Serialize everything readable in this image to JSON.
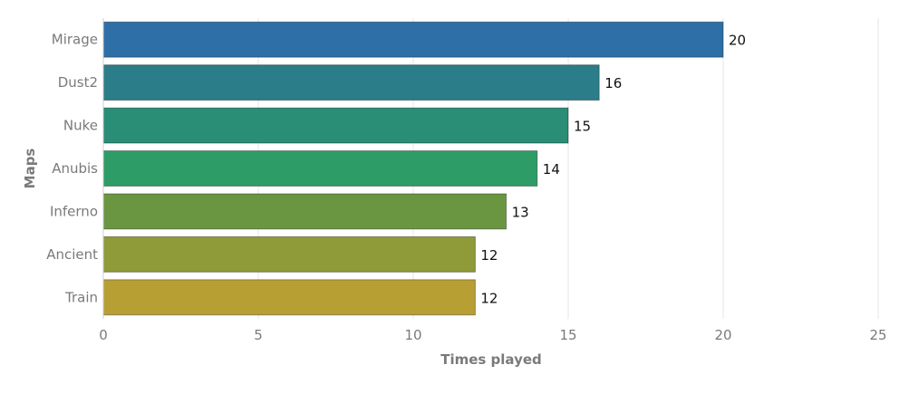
{
  "chart_data": {
    "type": "bar",
    "orientation": "horizontal",
    "categories": [
      "Mirage",
      "Dust2",
      "Nuke",
      "Anubis",
      "Inferno",
      "Ancient",
      "Train"
    ],
    "values": [
      20,
      16,
      15,
      14,
      13,
      12,
      12
    ],
    "value_labels": [
      "20",
      "16",
      "15",
      "14",
      "13",
      "12",
      "12"
    ],
    "colors": [
      "#2e6fa7",
      "#2b7d89",
      "#2a8d75",
      "#2e9c66",
      "#6a9642",
      "#8f9a39",
      "#b89f34"
    ],
    "xlabel": "Times played",
    "ylabel": "Maps",
    "xlim": [
      0,
      25
    ],
    "xticks": [
      0,
      5,
      10,
      15,
      20,
      25
    ],
    "xtick_labels": [
      "0",
      "5",
      "10",
      "15",
      "20",
      "25"
    ],
    "grid": true
  }
}
